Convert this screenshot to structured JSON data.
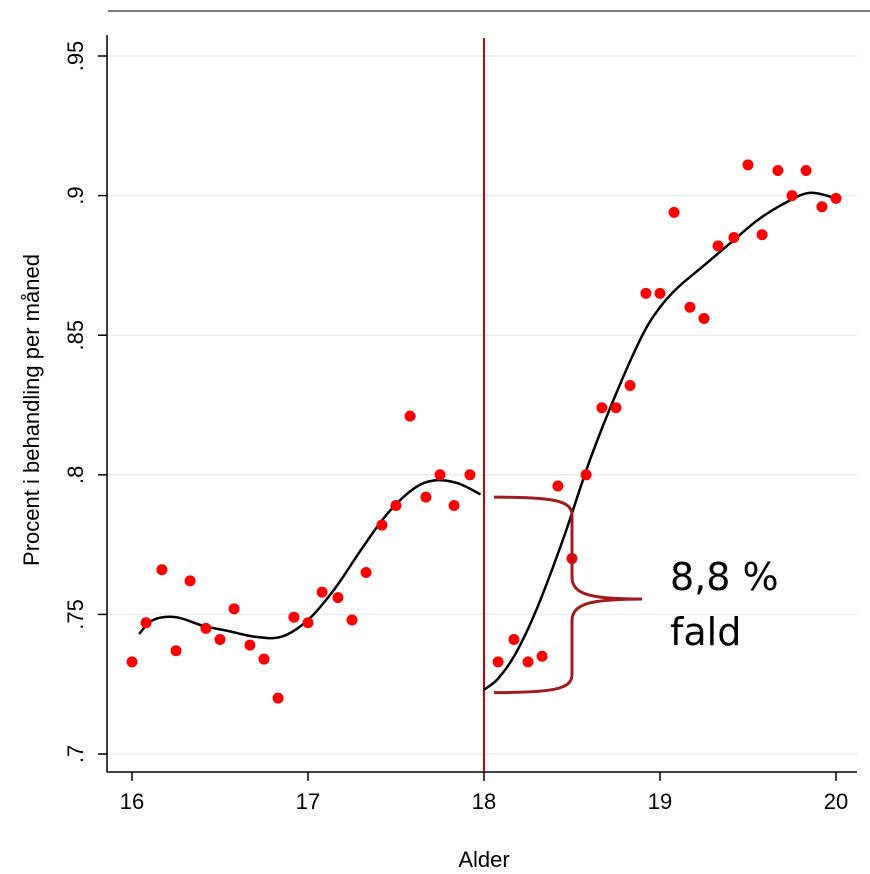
{
  "chart_data": {
    "type": "scatter",
    "xlabel": "Alder",
    "ylabel": "Procent i behandling per måned",
    "xlim": [
      15.98,
      20.1
    ],
    "ylim": [
      0.69,
      0.955
    ],
    "x_ticks": [
      16,
      17,
      18,
      19,
      20
    ],
    "x_tick_labels": [
      "16",
      "17",
      "18",
      "19",
      "20"
    ],
    "y_ticks": [
      0.7,
      0.75,
      0.8,
      0.85,
      0.9,
      0.95
    ],
    "y_tick_labels": [
      ".7",
      ".75",
      ".8",
      ".85",
      ".9",
      ".95"
    ],
    "grid": true,
    "cutoff_x": 18,
    "colors": {
      "points": "#ff0000",
      "fit": "#000000",
      "cutoff": "#cc0000",
      "brace": "#a01c1c",
      "grid": "#e8eef2"
    },
    "points": [
      [
        16.0,
        0.733
      ],
      [
        16.08,
        0.747
      ],
      [
        16.17,
        0.766
      ],
      [
        16.25,
        0.737
      ],
      [
        16.33,
        0.762
      ],
      [
        16.42,
        0.745
      ],
      [
        16.5,
        0.741
      ],
      [
        16.58,
        0.752
      ],
      [
        16.67,
        0.739
      ],
      [
        16.75,
        0.734
      ],
      [
        16.83,
        0.72
      ],
      [
        16.92,
        0.749
      ],
      [
        17.0,
        0.747
      ],
      [
        17.08,
        0.758
      ],
      [
        17.17,
        0.756
      ],
      [
        17.25,
        0.748
      ],
      [
        17.33,
        0.765
      ],
      [
        17.42,
        0.782
      ],
      [
        17.5,
        0.789
      ],
      [
        17.58,
        0.821
      ],
      [
        17.67,
        0.792
      ],
      [
        17.75,
        0.8
      ],
      [
        17.83,
        0.789
      ],
      [
        17.92,
        0.8
      ],
      [
        18.08,
        0.733
      ],
      [
        18.17,
        0.741
      ],
      [
        18.25,
        0.733
      ],
      [
        18.33,
        0.735
      ],
      [
        18.42,
        0.796
      ],
      [
        18.5,
        0.77
      ],
      [
        18.58,
        0.8
      ],
      [
        18.67,
        0.824
      ],
      [
        18.75,
        0.824
      ],
      [
        18.83,
        0.832
      ],
      [
        18.92,
        0.865
      ],
      [
        19.0,
        0.865
      ],
      [
        19.08,
        0.894
      ],
      [
        19.17,
        0.86
      ],
      [
        19.25,
        0.856
      ],
      [
        19.33,
        0.882
      ],
      [
        19.42,
        0.885
      ],
      [
        19.5,
        0.911
      ],
      [
        19.58,
        0.886
      ],
      [
        19.67,
        0.909
      ],
      [
        19.75,
        0.9
      ],
      [
        19.83,
        0.909
      ],
      [
        19.92,
        0.896
      ],
      [
        20.0,
        0.899
      ]
    ],
    "fit_left": [
      [
        16.04,
        0.743
      ],
      [
        16.12,
        0.748
      ],
      [
        16.25,
        0.749
      ],
      [
        16.4,
        0.746
      ],
      [
        16.55,
        0.744
      ],
      [
        16.7,
        0.742
      ],
      [
        16.85,
        0.742
      ],
      [
        17.0,
        0.748
      ],
      [
        17.15,
        0.759
      ],
      [
        17.3,
        0.773
      ],
      [
        17.45,
        0.786
      ],
      [
        17.6,
        0.795
      ],
      [
        17.72,
        0.798
      ],
      [
        17.85,
        0.797
      ],
      [
        17.98,
        0.793
      ]
    ],
    "fit_right": [
      [
        18.0,
        0.723
      ],
      [
        18.08,
        0.727
      ],
      [
        18.18,
        0.736
      ],
      [
        18.3,
        0.752
      ],
      [
        18.45,
        0.777
      ],
      [
        18.6,
        0.805
      ],
      [
        18.75,
        0.829
      ],
      [
        18.9,
        0.85
      ],
      [
        19.0,
        0.86
      ],
      [
        19.1,
        0.867
      ],
      [
        19.25,
        0.875
      ],
      [
        19.4,
        0.883
      ],
      [
        19.55,
        0.891
      ],
      [
        19.7,
        0.897
      ],
      [
        19.85,
        0.901
      ],
      [
        20.0,
        0.899
      ]
    ],
    "brace": {
      "x": 18.5,
      "y_top": 0.792,
      "y_bottom": 0.722,
      "y_tip": 0.7555
    },
    "annotations": [
      "8,8 %",
      "fald"
    ]
  }
}
